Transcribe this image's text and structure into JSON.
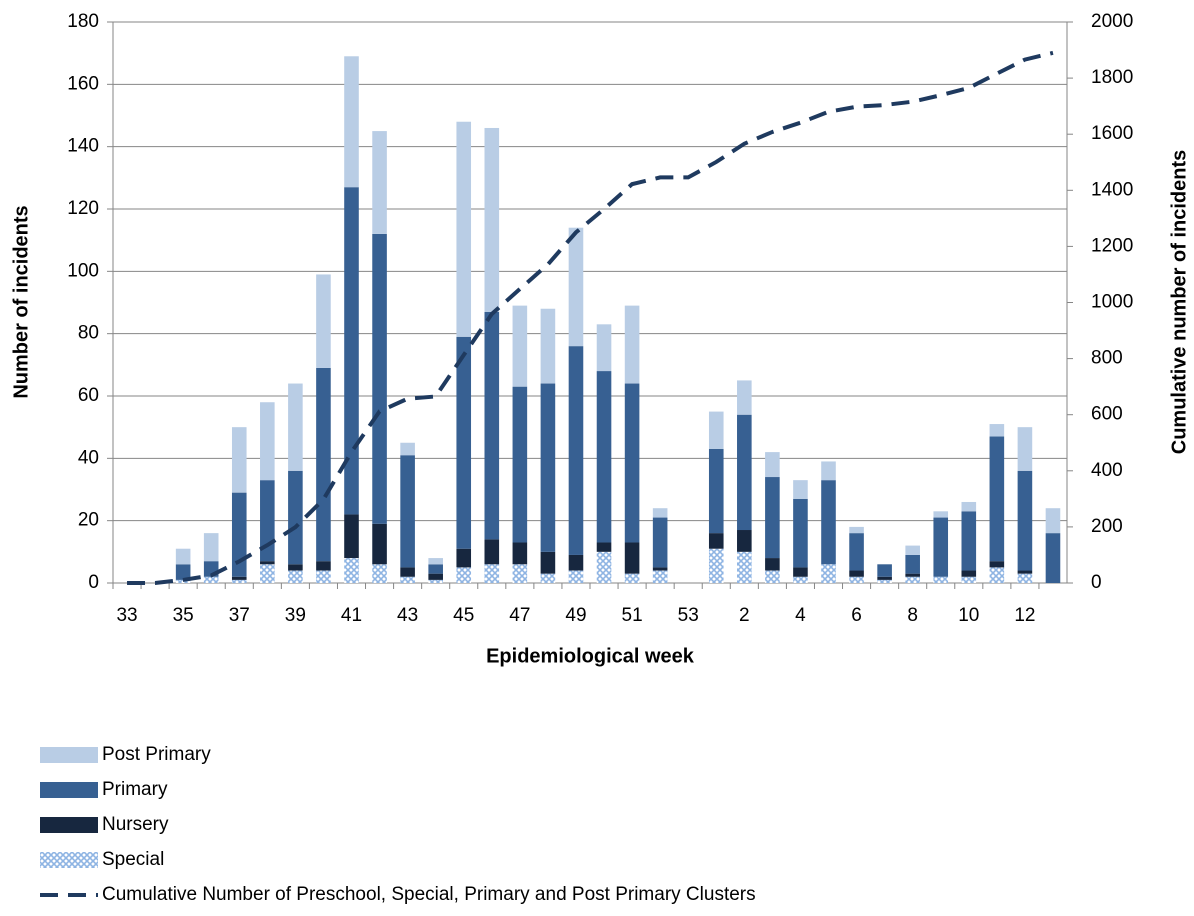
{
  "chart_data": {
    "type": "bar",
    "x_label": "Epidemiological week",
    "y_label": "Number of incidents",
    "y2_label": "Cumulative number of incidents",
    "categories": [
      "33",
      null,
      "35",
      null,
      "37",
      null,
      "39",
      null,
      "41",
      null,
      "43",
      null,
      "45",
      null,
      "47",
      null,
      "49",
      null,
      "51",
      null,
      "53",
      null,
      "2",
      null,
      "4",
      null,
      "6",
      null,
      "8",
      null,
      "10",
      null,
      "12",
      null
    ],
    "series": [
      {
        "name": "Post Primary",
        "color": "#b9cde5",
        "values": [
          0,
          0,
          5,
          9,
          21,
          25,
          28,
          30,
          42,
          33,
          4,
          2,
          69,
          59,
          26,
          24,
          38,
          15,
          25,
          3,
          0,
          12,
          11,
          8,
          6,
          6,
          2,
          0,
          3,
          2,
          3,
          4,
          14,
          8
        ]
      },
      {
        "name": "Primary",
        "color": "#376092",
        "values": [
          0,
          0,
          5,
          5,
          27,
          26,
          30,
          62,
          105,
          93,
          36,
          3,
          68,
          73,
          50,
          54,
          67,
          55,
          51,
          16,
          0,
          27,
          37,
          26,
          22,
          27,
          12,
          4,
          6,
          19,
          19,
          40,
          32,
          16
        ]
      },
      {
        "name": "Nursery",
        "color": "#17273f",
        "values": [
          0,
          0,
          0,
          0,
          1,
          1,
          2,
          3,
          14,
          13,
          3,
          2,
          6,
          8,
          7,
          7,
          5,
          3,
          10,
          1,
          0,
          5,
          7,
          4,
          3,
          0,
          2,
          1,
          1,
          0,
          2,
          2,
          1,
          0
        ]
      },
      {
        "name": "Special",
        "color": "#8eb4e3",
        "pattern": "crosshatch",
        "values": [
          0,
          0,
          1,
          2,
          1,
          6,
          4,
          4,
          8,
          6,
          2,
          1,
          5,
          6,
          6,
          3,
          4,
          10,
          3,
          4,
          0,
          11,
          10,
          4,
          2,
          6,
          2,
          1,
          2,
          2,
          2,
          5,
          3,
          0
        ]
      },
      {
        "name": "Cumulative Number of Preschool, Special, Primary and Post Primary Clusters",
        "type": "line",
        "axis": "y2",
        "color": "#1f3a5f",
        "dashed": true,
        "values": [
          0,
          0,
          11,
          27,
          77,
          135,
          199,
          298,
          467,
          612,
          657,
          665,
          813,
          959,
          1048,
          1136,
          1250,
          1333,
          1422,
          1446,
          1446,
          1501,
          1566,
          1608,
          1641,
          1680,
          1698,
          1704,
          1716,
          1739,
          1765,
          1816,
          1866,
          1890
        ]
      }
    ],
    "stacked": true,
    "ylim": [
      0,
      180
    ],
    "yticks": [
      0,
      20,
      40,
      60,
      80,
      100,
      120,
      140,
      160,
      180
    ],
    "y2lim": [
      0,
      2000
    ],
    "y2ticks": [
      0,
      200,
      400,
      600,
      800,
      1000,
      1200,
      1400,
      1600,
      1800,
      2000
    ],
    "grid": true,
    "legend": "bottom-left"
  }
}
